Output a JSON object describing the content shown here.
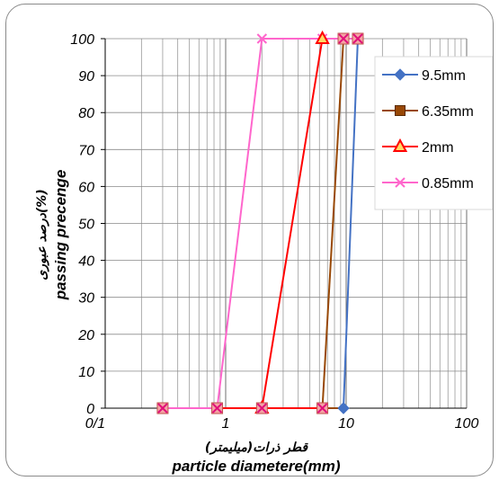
{
  "chart_data": {
    "type": "line",
    "x_scale": "log",
    "xlim": [
      0.1,
      100
    ],
    "ylim": [
      0,
      100
    ],
    "x_tick_labels": [
      "0/1",
      "1",
      "10",
      "100"
    ],
    "y_tick_labels": [
      "0",
      "10",
      "20",
      "30",
      "40",
      "50",
      "60",
      "70",
      "80",
      "90",
      "100"
    ],
    "xlabel": "particle diametere(mm)",
    "xlabel_fa": "قطر ذرات(میلیمتر)",
    "ylabel": "passing precenge",
    "ylabel_fa": "درصد عبوری(%)",
    "grid": true,
    "legend_position": "right",
    "series": [
      {
        "name": "9.5mm",
        "color": "#4472c4",
        "marker": "diamond",
        "x": [
          9.5,
          12.5
        ],
        "y": [
          0,
          100
        ]
      },
      {
        "name": "6.35mm",
        "color": "#984806",
        "marker": "square",
        "x": [
          6.35,
          9.5
        ],
        "y": [
          0,
          100
        ]
      },
      {
        "name": "2mm",
        "color": "#ff0000",
        "marker": "triangle",
        "x": [
          2,
          6.35
        ],
        "y": [
          0,
          100
        ]
      },
      {
        "name": "0.85mm",
        "color": "#ff66cc",
        "marker": "x",
        "x": [
          0.85,
          2,
          6.35,
          9.5,
          12.5
        ],
        "y": [
          0,
          100,
          100,
          100,
          100
        ]
      }
    ],
    "cross_markers": [
      {
        "x": 0.3,
        "y": 0
      },
      {
        "x": 0.85,
        "y": 0
      },
      {
        "x": 2,
        "y": 0
      },
      {
        "x": 6.35,
        "y": 0
      },
      {
        "x": 9.5,
        "y": 100
      },
      {
        "x": 12.5,
        "y": 100
      }
    ]
  }
}
